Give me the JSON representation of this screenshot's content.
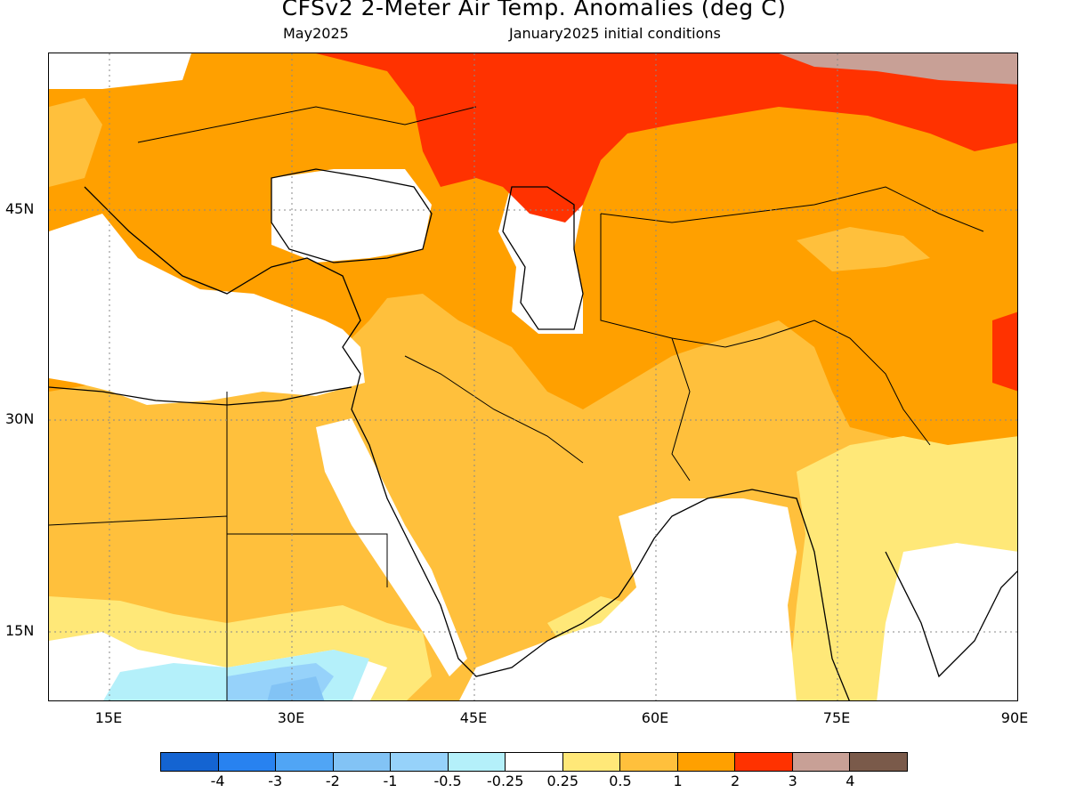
{
  "title": "CFSv2 2-Meter Air Temp. Anomalies (deg C)",
  "subtitle_left": "May2025",
  "subtitle_right": "January2025 initial conditions",
  "lat_labels": [
    "45N",
    "30N",
    "15N"
  ],
  "lon_labels": [
    "15E",
    "30E",
    "45E",
    "60E",
    "75E",
    "90E"
  ],
  "colorbar": {
    "colors": [
      "#1464d2",
      "#2882f0",
      "#50a5f5",
      "#82c3f5",
      "#96d2fa",
      "#b4f0fa",
      "#ffffff",
      "#ffe878",
      "#ffc03c",
      "#ffa000",
      "#ff3200",
      "#c8a096",
      "#7a5a4a"
    ],
    "labels": [
      "-4",
      "-3",
      "-2",
      "-1",
      "-0.5",
      "-0.25",
      "0.25",
      "0.5",
      "1",
      "2",
      "3",
      "4"
    ]
  }
}
